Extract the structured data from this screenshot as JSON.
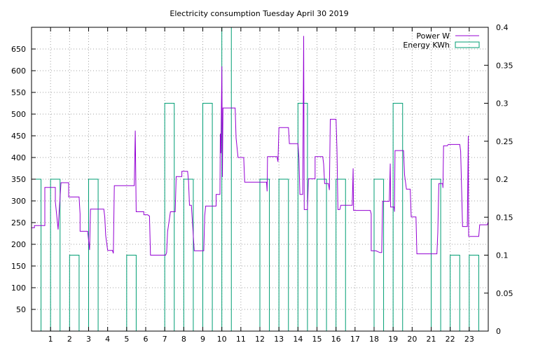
{
  "chart_data": {
    "type": "line",
    "title": "Electricity consumption Tuesday April 30 2019",
    "xlabel": "",
    "ylabel": "",
    "xlim": [
      0,
      24
    ],
    "ylim": [
      0,
      700
    ],
    "y2lim": [
      0,
      0.4
    ],
    "x_ticks": [
      1,
      2,
      3,
      4,
      5,
      6,
      7,
      8,
      9,
      10,
      11,
      12,
      13,
      14,
      15,
      16,
      17,
      18,
      19,
      20,
      21,
      22,
      23
    ],
    "y_ticks": [
      50,
      100,
      150,
      200,
      250,
      300,
      350,
      400,
      450,
      500,
      550,
      600,
      650
    ],
    "y2_ticks": [
      "0",
      "0.05",
      "0.1",
      "0.15",
      "0.2",
      "0.25",
      "0.3",
      "0.35",
      "0.4"
    ],
    "grid": true,
    "legend_position": "top-right",
    "colors": {
      "power": "#9400d3",
      "energy": "#009e73",
      "grid": "#a0a0a0",
      "axis": "#000000"
    },
    "series": [
      {
        "name": "Power W",
        "axis": "left",
        "style": "line",
        "points": [
          [
            0,
            238
          ],
          [
            0.15,
            238
          ],
          [
            0.15,
            243
          ],
          [
            0.7,
            243
          ],
          [
            0.7,
            331
          ],
          [
            1.25,
            331
          ],
          [
            1.25,
            298
          ],
          [
            1.4,
            234
          ],
          [
            1.45,
            275
          ],
          [
            1.55,
            342
          ],
          [
            1.95,
            342
          ],
          [
            1.95,
            309
          ],
          [
            2.5,
            309
          ],
          [
            2.55,
            270
          ],
          [
            2.55,
            230
          ],
          [
            2.95,
            230
          ],
          [
            3.05,
            187
          ],
          [
            3.1,
            281
          ],
          [
            3.8,
            281
          ],
          [
            3.85,
            262
          ],
          [
            3.9,
            220
          ],
          [
            4.0,
            186
          ],
          [
            4.25,
            186
          ],
          [
            4.3,
            179
          ],
          [
            4.35,
            335
          ],
          [
            5.4,
            335
          ],
          [
            5.45,
            462
          ],
          [
            5.5,
            275
          ],
          [
            5.9,
            275
          ],
          [
            5.9,
            268
          ],
          [
            6.1,
            268
          ],
          [
            6.2,
            265
          ],
          [
            6.25,
            175
          ],
          [
            7.05,
            175
          ],
          [
            7.1,
            181
          ],
          [
            7.15,
            229
          ],
          [
            7.3,
            275
          ],
          [
            7.55,
            275
          ],
          [
            7.6,
            356
          ],
          [
            7.9,
            356
          ],
          [
            7.9,
            368
          ],
          [
            8.2,
            368
          ],
          [
            8.25,
            346
          ],
          [
            8.3,
            290
          ],
          [
            8.4,
            290
          ],
          [
            8.45,
            254
          ],
          [
            8.55,
            185
          ],
          [
            9.05,
            185
          ],
          [
            9.1,
            266
          ],
          [
            9.15,
            288
          ],
          [
            9.7,
            288
          ],
          [
            9.7,
            315
          ],
          [
            9.9,
            315
          ],
          [
            9.92,
            455
          ],
          [
            9.95,
            410
          ],
          [
            10.0,
            610
          ],
          [
            10.03,
            355
          ],
          [
            10.06,
            514
          ],
          [
            10.7,
            514
          ],
          [
            10.75,
            445
          ],
          [
            10.85,
            400
          ],
          [
            11.15,
            400
          ],
          [
            11.2,
            343
          ],
          [
            12.35,
            343
          ],
          [
            12.38,
            322
          ],
          [
            12.4,
            402
          ],
          [
            12.9,
            402
          ],
          [
            12.95,
            390
          ],
          [
            13.0,
            469
          ],
          [
            13.5,
            469
          ],
          [
            13.55,
            432
          ],
          [
            14.0,
            432
          ],
          [
            14.05,
            400
          ],
          [
            14.1,
            315
          ],
          [
            14.25,
            315
          ],
          [
            14.3,
            680
          ],
          [
            14.33,
            280
          ],
          [
            14.5,
            280
          ],
          [
            14.55,
            351
          ],
          [
            14.9,
            351
          ],
          [
            14.9,
            402
          ],
          [
            15.3,
            402
          ],
          [
            15.35,
            385
          ],
          [
            15.4,
            340
          ],
          [
            15.6,
            340
          ],
          [
            15.65,
            325
          ],
          [
            15.7,
            488
          ],
          [
            16.0,
            488
          ],
          [
            16.05,
            420
          ],
          [
            16.1,
            280
          ],
          [
            16.2,
            280
          ],
          [
            16.25,
            290
          ],
          [
            16.85,
            290
          ],
          [
            16.9,
            375
          ],
          [
            16.92,
            278
          ],
          [
            17.8,
            278
          ],
          [
            17.85,
            270
          ],
          [
            17.85,
            185
          ],
          [
            18.1,
            185
          ],
          [
            18.3,
            181
          ],
          [
            18.4,
            181
          ],
          [
            18.45,
            299
          ],
          [
            18.8,
            299
          ],
          [
            18.85,
            386
          ],
          [
            18.87,
            286
          ],
          [
            19.05,
            286
          ],
          [
            19.07,
            275
          ],
          [
            19.1,
            416
          ],
          [
            19.55,
            416
          ],
          [
            19.6,
            360
          ],
          [
            19.7,
            327
          ],
          [
            19.9,
            327
          ],
          [
            19.95,
            263
          ],
          [
            20.2,
            263
          ],
          [
            20.25,
            178
          ],
          [
            21.3,
            178
          ],
          [
            21.35,
            228
          ],
          [
            21.4,
            340
          ],
          [
            21.6,
            340
          ],
          [
            21.62,
            330
          ],
          [
            21.65,
            427
          ],
          [
            21.85,
            427
          ],
          [
            21.9,
            430
          ],
          [
            22.5,
            430
          ],
          [
            22.55,
            414
          ],
          [
            22.65,
            241
          ],
          [
            22.9,
            241
          ],
          [
            22.95,
            450
          ],
          [
            22.97,
            218
          ],
          [
            23.5,
            218
          ],
          [
            23.55,
            245
          ],
          [
            23.95,
            245
          ],
          [
            24,
            252
          ],
          [
            24,
            382
          ]
        ]
      },
      {
        "name": "Energy KWh",
        "axis": "right",
        "style": "steps",
        "bars": [
          [
            0,
            0.2
          ],
          [
            1,
            0.2
          ],
          [
            2,
            0.1
          ],
          [
            3,
            0.2
          ],
          [
            4,
            0
          ],
          [
            5,
            0.1
          ],
          [
            6,
            0
          ],
          [
            7,
            0.3
          ],
          [
            8,
            0.2
          ],
          [
            9,
            0.3
          ],
          [
            10,
            0.4
          ],
          [
            11,
            0
          ],
          [
            12,
            0.2
          ],
          [
            13,
            0.2
          ],
          [
            14,
            0.3
          ],
          [
            15,
            0.2
          ],
          [
            16,
            0.2
          ],
          [
            17,
            0
          ],
          [
            18,
            0.2
          ],
          [
            19,
            0.3
          ],
          [
            20,
            0
          ],
          [
            21,
            0.2
          ],
          [
            22,
            0.1
          ],
          [
            23,
            0.1
          ]
        ]
      }
    ]
  }
}
